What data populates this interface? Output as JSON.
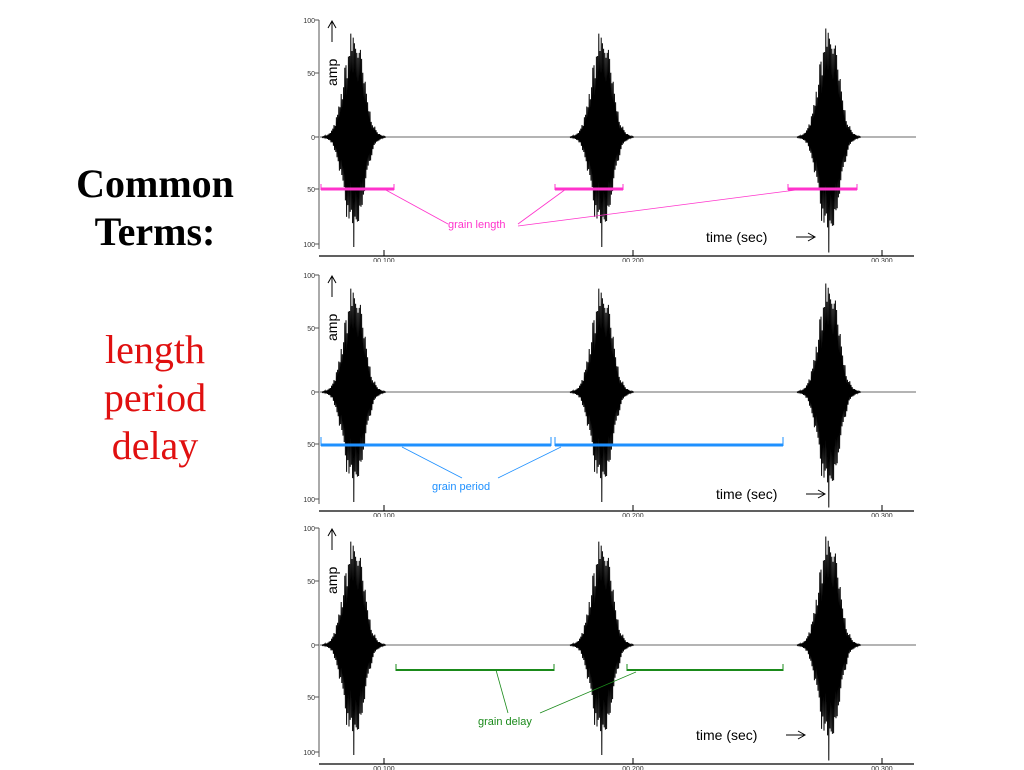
{
  "title": "Common Terms:",
  "terms": [
    "length",
    "period",
    "delay"
  ],
  "colors": {
    "terms": "#e01010",
    "length": "#ff33cc",
    "period": "#1e90ff",
    "delay": "#1a8a1a",
    "waveform": "#000000",
    "axis": "#555555"
  },
  "axis": {
    "amp_label": "amp",
    "time_label": "time (sec)",
    "y_ticks": [
      "100",
      "50",
      "0",
      "50",
      "100"
    ],
    "x_ticks": [
      "00.100",
      "00.200",
      "00.300"
    ]
  },
  "panels": [
    {
      "id": "length",
      "annotation": "grain length"
    },
    {
      "id": "period",
      "annotation": "grain period"
    },
    {
      "id": "delay",
      "annotation": "grain delay"
    }
  ]
}
